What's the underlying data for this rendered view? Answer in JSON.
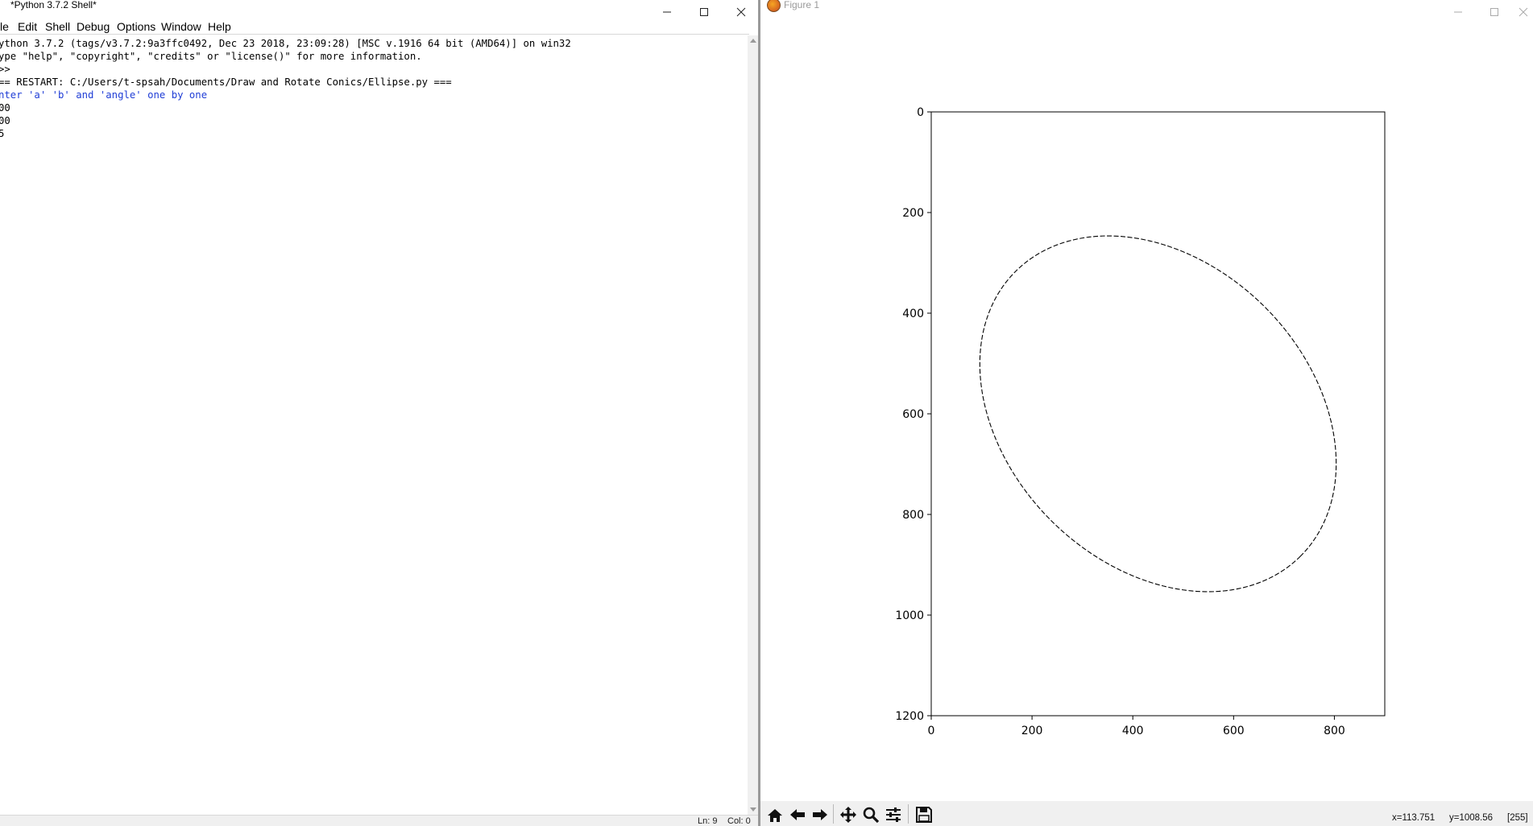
{
  "shell": {
    "title": "*Python 3.7.2 Shell*",
    "menu": [
      "le",
      "Edit",
      "Shell",
      "Debug",
      "Options",
      "Window",
      "Help"
    ],
    "lines": [
      {
        "text": "ython 3.7.2 (tags/v3.7.2:9a3ffc0492, Dec 23 2018, 23:09:28) [MSC v.1916 64 bit (AMD64)] on win32",
        "color": "#000000"
      },
      {
        "text": "ype \"help\", \"copyright\", \"credits\" or \"license()\" for more information.",
        "color": "#000000"
      },
      {
        "text": ">>",
        "color": "#000000"
      },
      {
        "text": "== RESTART: C:/Users/t-spsah/Documents/Draw and Rotate Conics/Ellipse.py ===",
        "color": "#000000"
      },
      {
        "text": "nter 'a' 'b' and 'angle' one by one",
        "color": "#1f3dd6"
      },
      {
        "text": "00",
        "color": "#000000"
      },
      {
        "text": "00",
        "color": "#000000"
      },
      {
        "text": "5",
        "color": "#000000"
      }
    ],
    "status": {
      "ln": "Ln: 9",
      "col": "Col: 0"
    }
  },
  "figure": {
    "title": "Figure 1",
    "status": {
      "x": "x=113.751",
      "y": "y=1008.56",
      "value": "[255]"
    },
    "toolbar": [
      "home-icon",
      "back-arrow-icon",
      "forward-arrow-icon",
      "pan-icon",
      "zoom-icon",
      "configure-subplots-icon",
      "save-icon"
    ]
  },
  "chart_data": {
    "type": "line",
    "title": "",
    "xlabel": "",
    "ylabel": "",
    "xlim": [
      0,
      900
    ],
    "ylim": [
      1200,
      0
    ],
    "y_inverted": true,
    "xticks": [
      0,
      200,
      400,
      600,
      800
    ],
    "yticks": [
      0,
      200,
      400,
      600,
      800,
      1000,
      1200
    ],
    "grid": false,
    "series": [
      {
        "style": "dashed",
        "color": "#000000",
        "ellipse": {
          "center": [
            450,
            600
          ],
          "a": 400,
          "b": 300,
          "angle_deg": 45
        }
      }
    ]
  }
}
